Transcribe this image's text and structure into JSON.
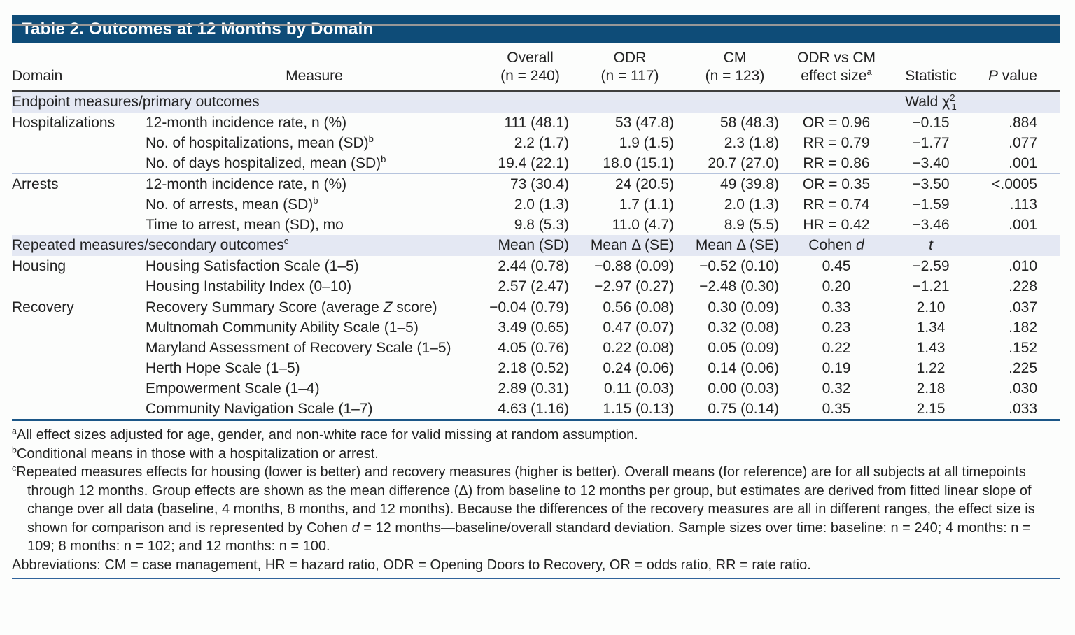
{
  "title": "Table 2. Outcomes at 12 Months by Domain",
  "colors": {
    "title_bar": "#0e4c78",
    "section_bg": "#e4e8f3",
    "header_rule": "#3e3e3e",
    "group_divider": "#b6c4dd",
    "table_bottom_rule": "#1b5687",
    "footer_rule": "#30639b"
  },
  "header": {
    "domain": "Domain",
    "measure": "Measure",
    "cols": [
      {
        "line1": "Overall",
        "line2": "(n = 240)"
      },
      {
        "line1": "ODR",
        "line2": "(n = 117)"
      },
      {
        "line1": "CM",
        "line2": "(n = 123)"
      },
      {
        "line1": "ODR vs CM",
        "line2": "effect size",
        "line2_sup": "a"
      }
    ],
    "statistic": "Statistic",
    "p_italic": "P",
    "p_rest": " value"
  },
  "sections": [
    {
      "label": [
        "Endpoint measures/primary outcomes"
      ],
      "cells": [
        "",
        "",
        "",
        "",
        [
          "Wald χ",
          {
            "t": "2",
            "s": "sup"
          },
          {
            "t": "1",
            "s": "sub"
          }
        ],
        ""
      ],
      "groups": [
        {
          "domain": "Hospitalizations",
          "rows": [
            {
              "measure": [
                "12-month incidence rate, n (%)"
              ],
              "overall": "111 (48.1)",
              "odr": "53 (47.8)",
              "cm": "58 (48.3)",
              "effect": "OR = 0.96",
              "stat": "−0.15",
              "p": ".884"
            },
            {
              "measure": [
                "No. of hospitalizations, mean (SD)",
                {
                  "t": "b",
                  "s": "sup"
                }
              ],
              "overall": "2.2 (1.7)",
              "odr": "1.9 (1.5)",
              "cm": "2.3 (1.8)",
              "effect": "RR = 0.79",
              "stat": "−1.77",
              "p": ".077"
            },
            {
              "measure": [
                "No. of days hospitalized, mean (SD)",
                {
                  "t": "b",
                  "s": "sup"
                }
              ],
              "overall": "19.4 (22.1)",
              "odr": "18.0 (15.1)",
              "cm": "20.7 (27.0)",
              "effect": "RR = 0.86",
              "stat": "−3.40",
              "p": ".001"
            }
          ]
        },
        {
          "domain": "Arrests",
          "rows": [
            {
              "measure": [
                "12-month incidence rate, n (%)"
              ],
              "overall": "73 (30.4)",
              "odr": "24 (20.5)",
              "cm": "49 (39.8)",
              "effect": "OR = 0.35",
              "stat": "−3.50",
              "p": "<.0005"
            },
            {
              "measure": [
                "No. of arrests, mean (SD)",
                {
                  "t": "b",
                  "s": "sup"
                }
              ],
              "overall": "2.0 (1.3)",
              "odr": "1.7 (1.1)",
              "cm": "2.0 (1.3)",
              "effect": "RR = 0.74",
              "stat": "−1.59",
              "p": ".113"
            },
            {
              "measure": [
                "Time to arrest, mean (SD), mo"
              ],
              "overall": "9.8 (5.3)",
              "odr": "11.0 (4.7)",
              "cm": "8.9 (5.5)",
              "effect": "HR = 0.42",
              "stat": "−3.46",
              "p": ".001"
            }
          ]
        }
      ]
    },
    {
      "label": [
        "Repeated measures/secondary outcomes",
        {
          "t": "c",
          "s": "sup"
        }
      ],
      "cells": [
        "Mean (SD)",
        "Mean Δ (SE)",
        "Mean Δ (SE)",
        [
          "Cohen ",
          {
            "t": "d",
            "s": "i"
          }
        ],
        [
          {
            "t": "t",
            "s": "i"
          }
        ],
        ""
      ],
      "groups": [
        {
          "domain": "Housing",
          "rows": [
            {
              "measure": [
                "Housing Satisfaction Scale (1–5)"
              ],
              "overall": "2.44 (0.78)",
              "odr": "−0.88 (0.09)",
              "cm": "−0.52 (0.10)",
              "effect": "0.45",
              "stat": "−2.59",
              "p": ".010"
            },
            {
              "measure": [
                "Housing Instability Index (0–10)"
              ],
              "overall": "2.57 (2.47)",
              "odr": "−2.97 (0.27)",
              "cm": "−2.48 (0.30)",
              "effect": "0.20",
              "stat": "−1.21",
              "p": ".228"
            }
          ]
        },
        {
          "domain": "Recovery",
          "rows": [
            {
              "measure": [
                "Recovery Summary Score (average ",
                {
                  "t": "Z",
                  "s": "i"
                },
                " score)"
              ],
              "overall": "−0.04 (0.79)",
              "odr": "0.56 (0.08)",
              "cm": "0.30 (0.09)",
              "effect": "0.33",
              "stat": "2.10",
              "p": ".037"
            },
            {
              "measure": [
                "Multnomah Community Ability Scale (1–5)"
              ],
              "overall": "3.49 (0.65)",
              "odr": "0.47 (0.07)",
              "cm": "0.32 (0.08)",
              "effect": "0.23",
              "stat": "1.34",
              "p": ".182"
            },
            {
              "measure": [
                "Maryland Assessment of Recovery Scale (1–5)"
              ],
              "overall": "4.05 (0.76)",
              "odr": "0.22 (0.08)",
              "cm": "0.05 (0.09)",
              "effect": "0.22",
              "stat": "1.43",
              "p": ".152"
            },
            {
              "measure": [
                "Herth Hope Scale (1–5)"
              ],
              "overall": "2.18 (0.52)",
              "odr": "0.24 (0.06)",
              "cm": "0.14 (0.06)",
              "effect": "0.19",
              "stat": "1.22",
              "p": ".225"
            },
            {
              "measure": [
                "Empowerment Scale (1–4)"
              ],
              "overall": "2.89 (0.31)",
              "odr": "0.11 (0.03)",
              "cm": "0.00 (0.03)",
              "effect": "0.32",
              "stat": "2.18",
              "p": ".030"
            },
            {
              "measure": [
                "Community Navigation Scale (1–7)"
              ],
              "overall": "4.63 (1.16)",
              "odr": "1.15 (0.13)",
              "cm": "0.75 (0.14)",
              "effect": "0.35",
              "stat": "2.15",
              "p": ".033"
            }
          ]
        }
      ]
    }
  ],
  "footnotes": [
    [
      {
        "t": "a",
        "s": "sup"
      },
      "All effect sizes adjusted for age, gender, and non-white race for valid missing at random assumption."
    ],
    [
      {
        "t": "b",
        "s": "sup"
      },
      "Conditional means in those with a hospitalization or arrest."
    ],
    [
      {
        "t": "c",
        "s": "sup"
      },
      "Repeated measures effects for housing (lower is better) and recovery measures (higher is better). Overall means (for reference) are for all subjects at all timepoints through 12 months. Group effects are shown as the mean difference (Δ) from baseline to 12 months per group, but estimates are derived from fitted linear slope of change over all data (baseline, 4 months, 8 months, and 12 months). Because the differences of the recovery measures are all in different ranges, the effect size is shown for comparison and is represented by Cohen ",
      {
        "t": "d",
        "s": "i"
      },
      " = 12 months—baseline/overall standard deviation. Sample sizes over time: baseline: n = 240; 4 months: n = 109; 8 months: n = 102; and 12 months: n = 100."
    ],
    [
      "Abbreviations: CM = case management, HR = hazard ratio, ODR = Opening Doors to Recovery, OR = odds ratio, RR = rate ratio."
    ]
  ]
}
